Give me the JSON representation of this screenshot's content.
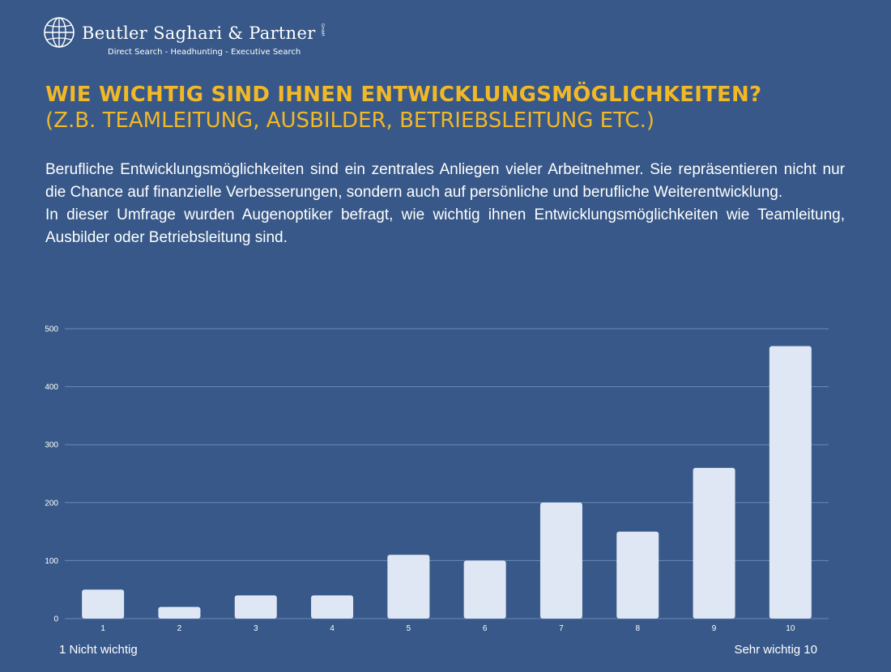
{
  "logo": {
    "brand": "Beutler Saghari & Partner",
    "suffix": "GmbH",
    "tagline": "Direct Search - Headhunting - Executive Search",
    "icon": "globe-icon"
  },
  "heading": {
    "title": "WIE WICHTIG SIND IHNEN ENTWICKLUNGSMÖGLICHKEITEN?",
    "subtitle": "(Z.B. TEAMLEITUNG, AUSBILDER, BETRIEBSLEITUNG ETC.)"
  },
  "description": {
    "paragraph1": "Berufliche Entwicklungsmöglichkeiten sind ein zentrales Anliegen vieler Arbeitnehmer. Sie repräsentieren nicht nur die Chance auf finanzielle Verbesserungen, sondern auch auf persönliche und berufliche Weiterentwicklung.",
    "paragraph2": "In dieser Umfrage wurden Augenoptiker befragt, wie wichtig ihnen Entwicklungsmöglichkeiten wie Teamleitung, Ausbilder oder Betriebsleitung sind."
  },
  "colors": {
    "background": "#375888",
    "accent": "#f1b827",
    "bar": "#dfe7f5",
    "grid": "#6d8ab5"
  },
  "chart_data": {
    "type": "bar",
    "categories": [
      "1",
      "2",
      "3",
      "4",
      "5",
      "6",
      "7",
      "8",
      "9",
      "10"
    ],
    "values": [
      50,
      20,
      40,
      40,
      110,
      100,
      200,
      150,
      260,
      470
    ],
    "ylim": [
      0,
      500
    ],
    "yticks": [
      0,
      100,
      200,
      300,
      400,
      500
    ],
    "grid": true,
    "scale_left_label": "1 Nicht wichtig",
    "scale_right_label": "Sehr wichtig 10"
  }
}
